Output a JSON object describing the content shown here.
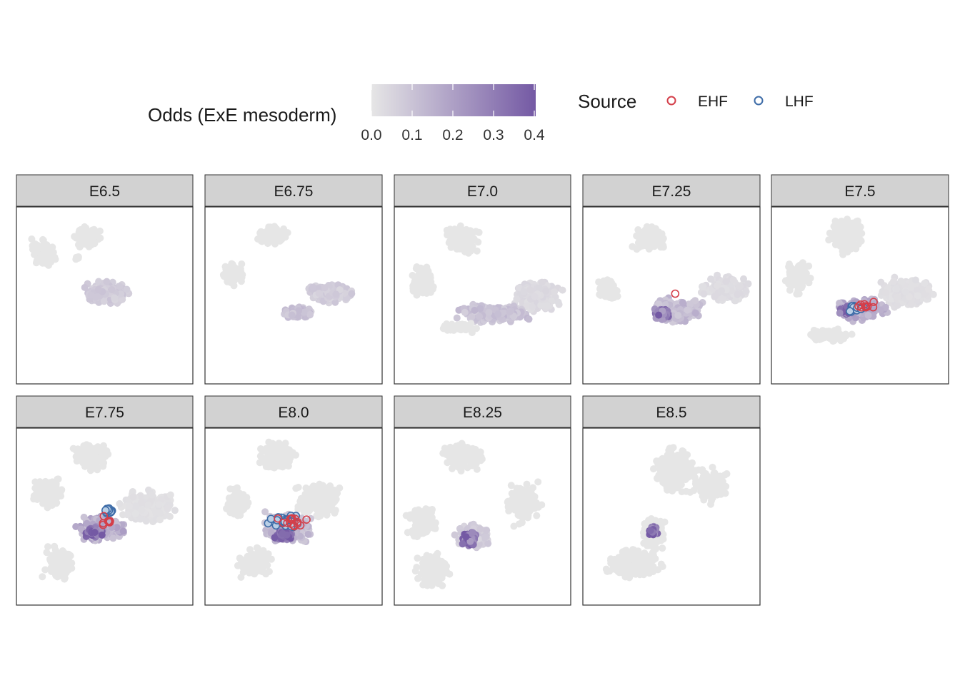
{
  "chart_data": {
    "type": "scatter",
    "colorbar": {
      "title": "Odds (ExE mesoderm)",
      "ticks": [
        "0.0",
        "0.1",
        "0.2",
        "0.3",
        "0.4"
      ],
      "range": [
        0,
        0.4
      ],
      "low_color": "#e6e6e6",
      "high_color": "#7459a4"
    },
    "source_legend": {
      "title": "Source",
      "items": [
        {
          "label": "EHF",
          "color": "#d43f4a"
        },
        {
          "label": "LHF",
          "color": "#3f6da8"
        }
      ]
    },
    "panels": [
      {
        "label": "E6.5"
      },
      {
        "label": "E6.75"
      },
      {
        "label": "E7.0"
      },
      {
        "label": "E7.25"
      },
      {
        "label": "E7.5"
      },
      {
        "label": "E7.75"
      },
      {
        "label": "E8.0"
      },
      {
        "label": "E8.25"
      },
      {
        "label": "E8.5"
      }
    ],
    "panel_border_color": "#333333",
    "strip_fill": "#d2d2d2",
    "background_point_color": "#e6e6e6"
  }
}
